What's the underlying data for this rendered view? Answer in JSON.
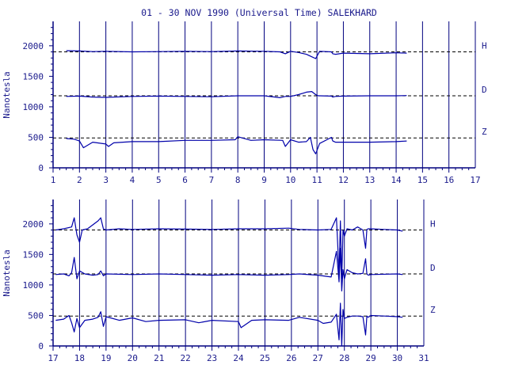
{
  "title": "01 - 30 NOV 1990 (Universal Time) SALEKHARD",
  "colors": {
    "axis": "#00007f",
    "trace": "#0000aa",
    "grid": "#00007f",
    "text": "#1a1a8c",
    "baseline": "#000000"
  },
  "chart_data": [
    {
      "type": "line",
      "xlabel": "",
      "ylabel": "Nanotesla",
      "xlim": [
        1,
        15
      ],
      "ylim": [
        0,
        2400
      ],
      "x_ticks": [
        "1",
        "2",
        "3",
        "4",
        "5",
        "6",
        "7",
        "8",
        "9",
        "10",
        "11",
        "12",
        "13",
        "14",
        "15",
        "16",
        "17"
      ],
      "y_ticks": [
        "0",
        "500",
        "1000",
        "1500",
        "2000"
      ],
      "grid": true,
      "legend": "right",
      "series": [
        {
          "name": "H",
          "baseline": 1900,
          "x": [
            1.5,
            2,
            2.5,
            3,
            4,
            5,
            6,
            7,
            8,
            9,
            9.6,
            9.8,
            10,
            10.3,
            10.6,
            10.8,
            10.95,
            11.05,
            11.1,
            11.55,
            11.6,
            11.7,
            12,
            13,
            14,
            14.4
          ],
          "values": [
            1920,
            1915,
            1905,
            1910,
            1900,
            1905,
            1910,
            1905,
            1915,
            1910,
            1900,
            1870,
            1910,
            1890,
            1860,
            1820,
            1790,
            1870,
            1910,
            1900,
            1870,
            1860,
            1880,
            1870,
            1885,
            1880
          ]
        },
        {
          "name": "D",
          "baseline": 1180,
          "x": [
            1.5,
            2,
            2.5,
            3,
            4,
            5,
            6,
            7,
            8,
            9,
            9.6,
            9.8,
            10,
            10.3,
            10.6,
            10.8,
            10.95,
            11.05,
            11.1,
            11.55,
            11.6,
            11.7,
            12,
            13,
            14,
            14.4
          ],
          "values": [
            1170,
            1175,
            1160,
            1155,
            1170,
            1175,
            1170,
            1165,
            1180,
            1180,
            1150,
            1170,
            1170,
            1200,
            1240,
            1250,
            1200,
            1180,
            1180,
            1175,
            1160,
            1170,
            1175,
            1180,
            1180,
            1185
          ]
        },
        {
          "name": "Z",
          "baseline": 490,
          "x": [
            1.5,
            1.8,
            2,
            2.15,
            2.5,
            3,
            3.1,
            3.3,
            4,
            5,
            6,
            7,
            7.9,
            8,
            8.5,
            9,
            9.7,
            9.8,
            10,
            10.3,
            10.6,
            10.75,
            10.85,
            10.95,
            11.1,
            11.55,
            11.6,
            11.7,
            12,
            13,
            14,
            14.4
          ],
          "values": [
            480,
            470,
            440,
            330,
            420,
            390,
            350,
            410,
            430,
            430,
            450,
            450,
            460,
            510,
            450,
            460,
            450,
            350,
            460,
            420,
            430,
            500,
            300,
            230,
            400,
            500,
            440,
            420,
            420,
            420,
            430,
            440
          ]
        }
      ]
    },
    {
      "type": "line",
      "xlabel": "",
      "ylabel": "Nanotesla",
      "xlim": [
        17,
        31
      ],
      "ylim": [
        0,
        2400
      ],
      "x_ticks": [
        "17",
        "18",
        "19",
        "20",
        "21",
        "22",
        "23",
        "24",
        "25",
        "26",
        "27",
        "28",
        "29",
        "30",
        "31"
      ],
      "y_ticks": [
        "0",
        "500",
        "1000",
        "1500",
        "2000"
      ],
      "grid": true,
      "legend": "right",
      "series": [
        {
          "name": "H",
          "baseline": 1900,
          "x": [
            17.1,
            17.4,
            17.7,
            17.8,
            17.9,
            18,
            18.1,
            18.3,
            18.7,
            18.8,
            18.9,
            19,
            19.5,
            20,
            21,
            22,
            23,
            24,
            25,
            25.9,
            26.3,
            27,
            27.5,
            27.7,
            27.8,
            27.85,
            27.9,
            27.95,
            28,
            28.1,
            28.3,
            28.5,
            28.7,
            28.8,
            28.85,
            28.9,
            29,
            29.5,
            30,
            30.2
          ],
          "values": [
            1900,
            1920,
            1950,
            2100,
            1820,
            1700,
            1900,
            1920,
            2050,
            2100,
            1920,
            1900,
            1920,
            1910,
            1920,
            1915,
            1910,
            1920,
            1920,
            1930,
            1910,
            1900,
            1910,
            2100,
            1200,
            2050,
            1100,
            1900,
            1800,
            1920,
            1900,
            1950,
            1900,
            1600,
            1910,
            1920,
            1920,
            1910,
            1900,
            1880
          ]
        },
        {
          "name": "D",
          "baseline": 1180,
          "x": [
            17.1,
            17.4,
            17.6,
            17.7,
            17.8,
            17.9,
            18,
            18.2,
            18.5,
            18.7,
            18.8,
            18.9,
            19,
            20,
            21,
            22,
            23,
            24,
            25,
            25.9,
            26.3,
            27,
            27.5,
            27.7,
            27.8,
            27.85,
            27.9,
            27.95,
            28,
            28.1,
            28.3,
            28.5,
            28.7,
            28.8,
            28.85,
            28.9,
            29,
            30,
            30.2
          ],
          "values": [
            1170,
            1180,
            1150,
            1200,
            1450,
            1100,
            1230,
            1180,
            1160,
            1170,
            1230,
            1150,
            1180,
            1170,
            1180,
            1170,
            1160,
            1170,
            1160,
            1170,
            1180,
            1160,
            1130,
            1550,
            1050,
            1600,
            900,
            1250,
            1100,
            1250,
            1200,
            1180,
            1190,
            1430,
            1180,
            1160,
            1170,
            1180,
            1170
          ]
        },
        {
          "name": "Z",
          "baseline": 490,
          "x": [
            17.1,
            17.4,
            17.6,
            17.7,
            17.8,
            17.9,
            18,
            18.2,
            18.5,
            18.7,
            18.8,
            18.9,
            19,
            19.5,
            20,
            20.5,
            21,
            22,
            22.5,
            23,
            24,
            24.1,
            24.5,
            25,
            25.9,
            26.3,
            27,
            27.2,
            27.5,
            27.7,
            27.8,
            27.85,
            27.9,
            27.95,
            28,
            28.1,
            28.3,
            28.5,
            28.7,
            28.8,
            28.85,
            28.9,
            29,
            29.5,
            30,
            30.2
          ],
          "values": [
            420,
            440,
            500,
            380,
            230,
            450,
            300,
            420,
            440,
            470,
            560,
            320,
            480,
            420,
            460,
            400,
            420,
            430,
            380,
            420,
            400,
            300,
            420,
            430,
            420,
            470,
            420,
            370,
            390,
            520,
            100,
            700,
            0,
            600,
            450,
            470,
            490,
            490,
            480,
            180,
            490,
            470,
            500,
            490,
            480,
            470
          ]
        }
      ]
    }
  ]
}
